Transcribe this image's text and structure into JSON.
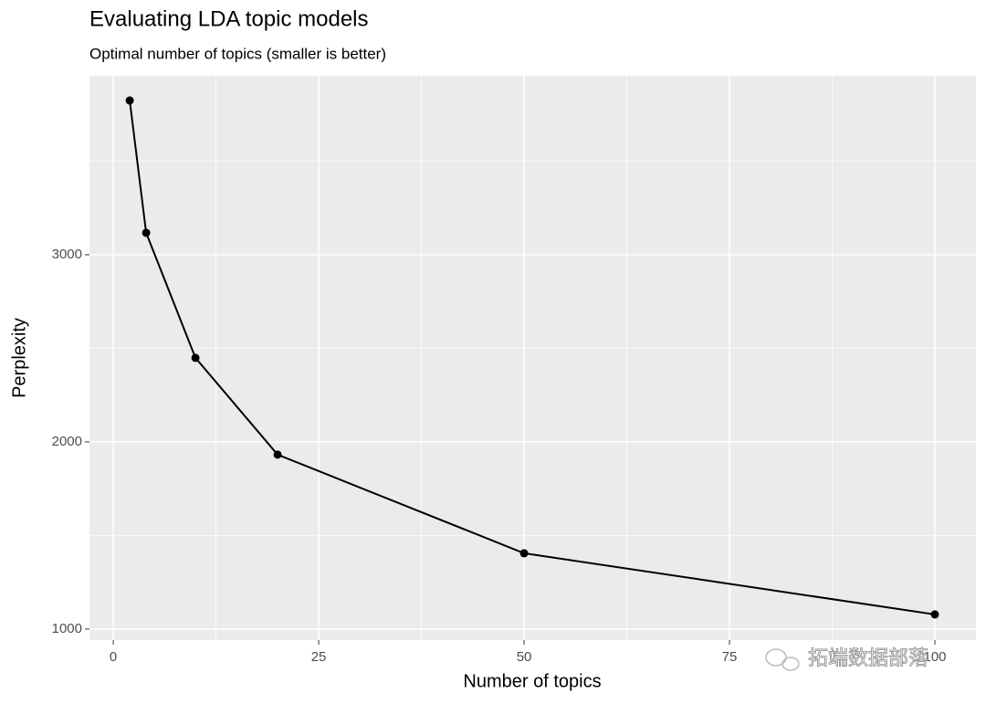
{
  "chart_data": {
    "type": "line",
    "title": "Evaluating LDA topic models",
    "subtitle": "Optimal number of topics (smaller is better)",
    "x_label": "Number of topics",
    "y_label": "Perplexity",
    "x": [
      2,
      4,
      10,
      20,
      50,
      100
    ],
    "values": [
      3824,
      3117,
      2449,
      1932,
      1405,
      1078
    ],
    "color": "#000000",
    "xlim": [
      -2.9,
      105
    ],
    "ylim": [
      941,
      3956
    ],
    "xticks": [
      0,
      25,
      50,
      75,
      100
    ],
    "yticks": [
      1000,
      2000,
      3000
    ],
    "x_minor_ticks": [
      12.5,
      37.5,
      62.5,
      87.5
    ],
    "y_minor_ticks": [
      1500,
      2500,
      3500
    ],
    "grid": true,
    "watermark": "拓端数据部落"
  }
}
